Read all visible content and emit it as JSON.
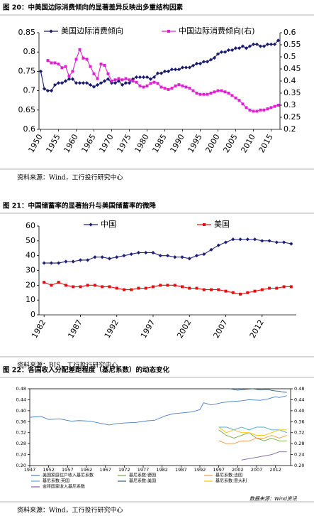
{
  "chart_data": [
    {
      "type": "line",
      "title": "图 20：中美国边际消费倾向的显著差异反映出多重结构因素",
      "source": "资料来源：Wind，工行投行研究中心",
      "x": [
        1950,
        1951,
        1952,
        1953,
        1954,
        1955,
        1956,
        1957,
        1958,
        1959,
        1960,
        1961,
        1962,
        1963,
        1964,
        1965,
        1966,
        1967,
        1968,
        1969,
        1970,
        1971,
        1972,
        1973,
        1974,
        1975,
        1976,
        1977,
        1978,
        1979,
        1980,
        1981,
        1982,
        1983,
        1984,
        1985,
        1986,
        1987,
        1988,
        1989,
        1990,
        1991,
        1992,
        1993,
        1994,
        1995,
        1996,
        1997,
        1998,
        1999,
        2000,
        2001,
        2002,
        2003,
        2004,
        2005,
        2006,
        2007,
        2008,
        2009,
        2010,
        2011,
        2012,
        2013,
        2014,
        2015,
        2016,
        2017
      ],
      "xlim": [
        1949.5,
        2017.5
      ],
      "xticks": [
        1950,
        1955,
        1960,
        1965,
        1970,
        1975,
        1980,
        1985,
        1990,
        1995,
        2000,
        2005,
        2010,
        2015
      ],
      "ylim": [
        0.6,
        0.85
      ],
      "yticks": [
        0.6,
        0.65,
        0.7,
        0.75,
        0.8,
        0.85
      ],
      "y2lim": [
        0.2,
        0.6
      ],
      "y2ticks": [
        0.2,
        0.25,
        0.3,
        0.35,
        0.4,
        0.45,
        0.5,
        0.55,
        0.6
      ],
      "series": [
        {
          "name": "美国边际消费倾向",
          "color": "#1a1a6e",
          "marker": "diamond",
          "values": [
            0.75,
            0.705,
            0.7,
            0.7,
            0.715,
            0.72,
            0.72,
            0.725,
            0.73,
            0.73,
            0.72,
            0.72,
            0.72,
            0.72,
            0.715,
            0.71,
            0.715,
            0.72,
            0.725,
            0.73,
            0.72,
            0.72,
            0.725,
            0.715,
            0.72,
            0.72,
            0.73,
            0.735,
            0.735,
            0.735,
            0.735,
            0.73,
            0.735,
            0.745,
            0.745,
            0.75,
            0.75,
            0.755,
            0.755,
            0.755,
            0.76,
            0.76,
            0.76,
            0.765,
            0.77,
            0.77,
            0.775,
            0.775,
            0.78,
            0.785,
            0.795,
            0.8,
            0.8,
            0.805,
            0.805,
            0.81,
            0.81,
            0.815,
            0.81,
            0.815,
            0.82,
            0.82,
            0.815,
            0.815,
            0.82,
            0.82,
            0.82,
            0.83
          ]
        },
        {
          "name": "中国边际消费倾向(右)",
          "color": "#e020d0",
          "marker": "square",
          "axis": "y2",
          "values": [
            null,
            null,
            0.485,
            0.475,
            0.475,
            0.47,
            0.455,
            0.46,
            0.42,
            0.44,
            0.49,
            0.53,
            0.495,
            0.49,
            0.46,
            0.43,
            0.41,
            0.47,
            0.465,
            0.43,
            0.4,
            0.405,
            0.41,
            0.405,
            0.41,
            0.405,
            0.4,
            0.395,
            0.38,
            0.375,
            0.38,
            0.39,
            0.395,
            0.39,
            0.375,
            0.37,
            0.365,
            0.37,
            0.38,
            0.385,
            0.38,
            0.375,
            0.37,
            0.36,
            0.35,
            0.345,
            0.345,
            0.345,
            0.35,
            0.355,
            0.36,
            0.36,
            0.355,
            0.35,
            0.34,
            0.33,
            0.32,
            0.305,
            0.29,
            0.28,
            0.275,
            0.275,
            0.28,
            0.28,
            0.285,
            0.29,
            0.295,
            0.3
          ]
        }
      ]
    },
    {
      "type": "line",
      "title": "图 21：中国储蓄率的显著抬升与美国储蓄率的微降",
      "source": "资料来源：BIS，工行投行研究中心",
      "x": [
        1982,
        1983,
        1984,
        1985,
        1986,
        1987,
        1988,
        1989,
        1990,
        1991,
        1992,
        1993,
        1994,
        1995,
        1996,
        1997,
        1998,
        1999,
        2000,
        2001,
        2002,
        2003,
        2004,
        2005,
        2006,
        2007,
        2008,
        2009,
        2010,
        2011,
        2012,
        2013,
        2014,
        2015,
        2016
      ],
      "xlim": [
        1981.3,
        2016.7
      ],
      "xticks": [
        1982,
        1987,
        1992,
        1997,
        2002,
        2007,
        2012
      ],
      "ylim": [
        0,
        60
      ],
      "yticks": [
        0,
        10,
        20,
        30,
        40,
        50,
        60
      ],
      "series": [
        {
          "name": "中国",
          "color": "#1f1f7a",
          "marker": "diamond",
          "values": [
            35,
            35,
            35,
            36,
            36,
            37,
            37,
            39,
            39,
            38,
            39,
            40,
            41,
            42,
            42,
            42,
            40,
            40,
            39,
            39,
            38,
            40,
            41,
            44,
            47,
            49,
            51,
            51,
            51,
            51,
            50,
            50,
            49,
            49,
            48
          ]
        },
        {
          "name": "美国",
          "color": "#e01010",
          "marker": "square",
          "values": [
            22,
            20,
            22,
            20,
            19,
            19,
            20,
            20,
            19,
            19,
            18,
            17,
            17,
            18,
            18,
            19,
            20,
            20,
            20,
            19,
            18,
            18,
            17,
            17,
            17,
            16,
            15,
            14,
            15,
            16,
            17,
            18,
            18,
            19,
            19
          ]
        }
      ]
    },
    {
      "type": "line",
      "title": "图 22：各国收入分配差距程度（基尼系数）的动态变化",
      "source": "资料来源：Wind，工行投行研究中心",
      "watermark": "数据来源：Wind资讯",
      "xlim": [
        1947,
        2016
      ],
      "xticks": [
        1947,
        1952,
        1957,
        1962,
        1967,
        1972,
        1977,
        1982,
        1987,
        1992,
        1997,
        2002,
        2007,
        2012
      ],
      "ylim": [
        0.2,
        0.48
      ],
      "yticks": [
        {
          "value": 0.2,
          "label": "0.20"
        },
        0.24,
        0.28,
        0.32,
        0.36,
        {
          "value": 0.4,
          "label": "0.40"
        },
        0.44,
        0.48
      ],
      "y2lim": [
        0.2,
        0.48
      ],
      "y2ticks": [
        {
          "value": 0.2,
          "label": "0.20"
        },
        0.24,
        0.28,
        0.32,
        0.36,
        {
          "value": 0.4,
          "label": "0.40"
        },
        0.44,
        0.48
      ],
      "series": [
        {
          "name": "美国家庭住户收入基尼系数",
          "color": "#4a7fc8",
          "x": [
            1947,
            1950,
            1952,
            1955,
            1958,
            1960,
            1963,
            1965,
            1968,
            1970,
            1973,
            1975,
            1978,
            1980,
            1983,
            1985,
            1988,
            1990,
            1992,
            1993,
            1995,
            1998,
            2000,
            2003,
            2005,
            2008,
            2010,
            2012,
            2013,
            2015
          ],
          "values": [
            0.376,
            0.379,
            0.368,
            0.37,
            0.362,
            0.364,
            0.362,
            0.356,
            0.348,
            0.353,
            0.356,
            0.357,
            0.363,
            0.365,
            0.382,
            0.389,
            0.393,
            0.396,
            0.404,
            0.429,
            0.421,
            0.43,
            0.433,
            0.436,
            0.44,
            0.438,
            0.443,
            0.451,
            0.448,
            0.455
          ]
        },
        {
          "name": "基尼系数:德国",
          "color": "#70ad47",
          "x": [
            1997,
            1999,
            2001,
            2003,
            2005,
            2007,
            2009,
            2011,
            2013,
            2015
          ],
          "values": [
            0.33,
            0.31,
            0.3,
            0.31,
            0.32,
            0.3,
            0.29,
            0.3,
            0.29,
            0.29
          ]
        },
        {
          "name": "基尼系数:法国",
          "color": "#f79646",
          "x": [
            1997,
            1999,
            2001,
            2003,
            2005,
            2007,
            2009,
            2011,
            2013,
            2015
          ],
          "values": [
            0.29,
            0.28,
            0.28,
            0.29,
            0.29,
            0.3,
            0.3,
            0.31,
            0.3,
            0.31
          ]
        },
        {
          "name": "基尼系数:英国",
          "color": "#4bacc6",
          "x": [
            1997,
            1999,
            2001,
            2003,
            2005,
            2007,
            2009,
            2011,
            2013,
            2015
          ],
          "values": [
            0.34,
            0.34,
            0.33,
            0.34,
            0.33,
            0.34,
            0.34,
            0.33,
            0.33,
            0.32
          ]
        },
        {
          "name": "基尼系数:美国",
          "color": "#2e5e7e",
          "axis": "y2",
          "x": [
            2000,
            2002,
            2004,
            2006,
            2008,
            2010,
            2011,
            2012,
            2013,
            2014,
            2015
          ],
          "values": [
            0.48,
            0.475,
            0.478,
            0.48,
            0.476,
            0.478,
            0.474,
            0.472,
            0.471,
            0.468,
            0.467
          ]
        },
        {
          "name": "基尼系数:意大利",
          "color": "#ffc000",
          "x": [
            1997,
            1999,
            2001,
            2003,
            2005,
            2007,
            2009,
            2011,
            2013,
            2015
          ],
          "values": [
            0.34,
            0.32,
            0.33,
            0.32,
            0.32,
            0.31,
            0.31,
            0.32,
            0.33,
            0.33
          ]
        },
        {
          "name": "金砖国家收入基尼系数",
          "color": "#8064a2",
          "x": [
            2003,
            2005,
            2007,
            2009,
            2011,
            2013,
            2015
          ],
          "values": [
            0.22,
            0.225,
            0.23,
            0.235,
            0.24,
            0.25,
            0.25
          ]
        }
      ]
    }
  ]
}
